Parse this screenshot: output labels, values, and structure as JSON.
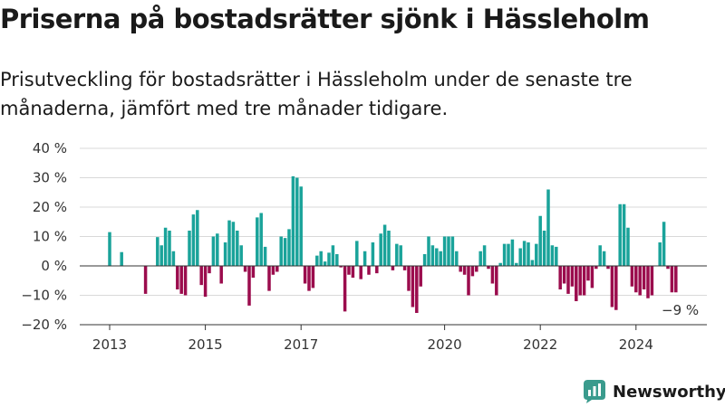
{
  "header": {
    "title": "Priserna på bostadsrätter sjönk i Hässleholm",
    "subtitle": "Prisutveckling för bostadsrätter i Hässleholm under de senaste tre månaderna, jämfört med tre månader tidigare."
  },
  "brand": {
    "name": "Newsworthy",
    "logo_icon": "bar-chart-speech-bubble-icon",
    "color": "#3a9b8d"
  },
  "colors": {
    "positive": "#1aa39a",
    "negative": "#9b0c4d"
  },
  "chart_data": {
    "type": "bar",
    "title": "Priserna på bostadsrätter sjönk i Hässleholm",
    "subtitle": "Prisutveckling för bostadsrätter i Hässleholm under de senaste tre månaderna, jämfört med tre månader tidigare.",
    "xlabel": "",
    "ylabel": "",
    "ylim": [
      -20,
      40
    ],
    "grid": true,
    "y_ticks": [
      40,
      30,
      20,
      10,
      0,
      -10,
      -20
    ],
    "y_tick_labels": [
      "40 %",
      "30 %",
      "20 %",
      "10 %",
      "0 %",
      "−10 %",
      "−20 %"
    ],
    "x_tick_labels": [
      {
        "label": "2013",
        "month_index": 0
      },
      {
        "label": "2015",
        "month_index": 24
      },
      {
        "label": "2017",
        "month_index": 48
      },
      {
        "label": "2020",
        "month_index": 84
      },
      {
        "label": "2022",
        "month_index": 108
      },
      {
        "label": "2024",
        "month_index": 132
      }
    ],
    "x_range_months": [
      -5,
      153
    ],
    "annotation": {
      "text": "−9 %",
      "month_index": 144
    },
    "series": [
      {
        "points": [
          {
            "m": 0,
            "v": 11.5
          },
          {
            "m": 3,
            "v": 4.7
          },
          {
            "m": 9,
            "v": -9.5
          },
          {
            "m": 12,
            "v": 9.8
          },
          {
            "m": 13,
            "v": 7
          },
          {
            "m": 14,
            "v": 13
          },
          {
            "m": 15,
            "v": 12
          },
          {
            "m": 16,
            "v": 5
          },
          {
            "m": 17,
            "v": -8
          },
          {
            "m": 18,
            "v": -9.5
          },
          {
            "m": 19,
            "v": -10
          },
          {
            "m": 20,
            "v": 12
          },
          {
            "m": 21,
            "v": 17.5
          },
          {
            "m": 22,
            "v": 19
          },
          {
            "m": 23,
            "v": -6.5
          },
          {
            "m": 24,
            "v": -10.5
          },
          {
            "m": 25,
            "v": -2.5
          },
          {
            "m": 26,
            "v": 10
          },
          {
            "m": 27,
            "v": 11
          },
          {
            "m": 28,
            "v": -6
          },
          {
            "m": 29,
            "v": 8
          },
          {
            "m": 30,
            "v": 15.5
          },
          {
            "m": 31,
            "v": 15
          },
          {
            "m": 32,
            "v": 12
          },
          {
            "m": 33,
            "v": 7
          },
          {
            "m": 34,
            "v": -2
          },
          {
            "m": 35,
            "v": -13.5
          },
          {
            "m": 36,
            "v": -4
          },
          {
            "m": 37,
            "v": 16.5
          },
          {
            "m": 38,
            "v": 18
          },
          {
            "m": 39,
            "v": 6.5
          },
          {
            "m": 40,
            "v": -8.5
          },
          {
            "m": 41,
            "v": -3
          },
          {
            "m": 42,
            "v": -2
          },
          {
            "m": 43,
            "v": 10
          },
          {
            "m": 44,
            "v": 9.5
          },
          {
            "m": 45,
            "v": 12.5
          },
          {
            "m": 46,
            "v": 30.5
          },
          {
            "m": 47,
            "v": 30
          },
          {
            "m": 48,
            "v": 27
          },
          {
            "m": 49,
            "v": -6
          },
          {
            "m": 50,
            "v": -8.5
          },
          {
            "m": 51,
            "v": -7.5
          },
          {
            "m": 52,
            "v": 3.5
          },
          {
            "m": 53,
            "v": 5
          },
          {
            "m": 54,
            "v": 1.5
          },
          {
            "m": 55,
            "v": 4.5
          },
          {
            "m": 56,
            "v": 7
          },
          {
            "m": 57,
            "v": 4
          },
          {
            "m": 58,
            "v": -0.5
          },
          {
            "m": 59,
            "v": -15.5
          },
          {
            "m": 60,
            "v": -3
          },
          {
            "m": 61,
            "v": -4
          },
          {
            "m": 62,
            "v": 8.5
          },
          {
            "m": 63,
            "v": -4.5
          },
          {
            "m": 64,
            "v": 5
          },
          {
            "m": 65,
            "v": -3
          },
          {
            "m": 66,
            "v": 8
          },
          {
            "m": 67,
            "v": -2.5
          },
          {
            "m": 68,
            "v": 11
          },
          {
            "m": 69,
            "v": 14
          },
          {
            "m": 70,
            "v": 12
          },
          {
            "m": 71,
            "v": -1.5
          },
          {
            "m": 72,
            "v": 7.5
          },
          {
            "m": 73,
            "v": 7
          },
          {
            "m": 74,
            "v": -1.5
          },
          {
            "m": 75,
            "v": -8.5
          },
          {
            "m": 76,
            "v": -14
          },
          {
            "m": 77,
            "v": -16
          },
          {
            "m": 78,
            "v": -7
          },
          {
            "m": 79,
            "v": 4
          },
          {
            "m": 80,
            "v": 10
          },
          {
            "m": 81,
            "v": 7
          },
          {
            "m": 82,
            "v": 6
          },
          {
            "m": 83,
            "v": 5
          },
          {
            "m": 84,
            "v": 10
          },
          {
            "m": 85,
            "v": 10
          },
          {
            "m": 86,
            "v": 10
          },
          {
            "m": 87,
            "v": 5
          },
          {
            "m": 88,
            "v": -2
          },
          {
            "m": 89,
            "v": -3
          },
          {
            "m": 90,
            "v": -10
          },
          {
            "m": 91,
            "v": -3.5
          },
          {
            "m": 92,
            "v": -2
          },
          {
            "m": 93,
            "v": 5
          },
          {
            "m": 94,
            "v": 7
          },
          {
            "m": 95,
            "v": -1
          },
          {
            "m": 96,
            "v": -6
          },
          {
            "m": 97,
            "v": -10
          },
          {
            "m": 98,
            "v": 1
          },
          {
            "m": 99,
            "v": 7.5
          },
          {
            "m": 100,
            "v": 7.5
          },
          {
            "m": 101,
            "v": 9
          },
          {
            "m": 102,
            "v": 1
          },
          {
            "m": 103,
            "v": 6
          },
          {
            "m": 104,
            "v": 8.5
          },
          {
            "m": 105,
            "v": 8
          },
          {
            "m": 106,
            "v": 2
          },
          {
            "m": 107,
            "v": 7.5
          },
          {
            "m": 108,
            "v": 17
          },
          {
            "m": 109,
            "v": 12
          },
          {
            "m": 110,
            "v": 26
          },
          {
            "m": 111,
            "v": 7
          },
          {
            "m": 112,
            "v": 6.5
          },
          {
            "m": 113,
            "v": -8
          },
          {
            "m": 114,
            "v": -6
          },
          {
            "m": 115,
            "v": -9.5
          },
          {
            "m": 116,
            "v": -7
          },
          {
            "m": 117,
            "v": -12
          },
          {
            "m": 118,
            "v": -10
          },
          {
            "m": 119,
            "v": -10
          },
          {
            "m": 120,
            "v": -5
          },
          {
            "m": 121,
            "v": -7.5
          },
          {
            "m": 122,
            "v": -1
          },
          {
            "m": 123,
            "v": 7
          },
          {
            "m": 124,
            "v": 5
          },
          {
            "m": 125,
            "v": -1
          },
          {
            "m": 126,
            "v": -14
          },
          {
            "m": 127,
            "v": -15
          },
          {
            "m": 128,
            "v": 21
          },
          {
            "m": 129,
            "v": 21
          },
          {
            "m": 130,
            "v": 13
          },
          {
            "m": 131,
            "v": -7
          },
          {
            "m": 132,
            "v": -9
          },
          {
            "m": 133,
            "v": -10
          },
          {
            "m": 134,
            "v": -8
          },
          {
            "m": 135,
            "v": -11
          },
          {
            "m": 136,
            "v": -10
          },
          {
            "m": 138,
            "v": 8
          },
          {
            "m": 139,
            "v": 15
          },
          {
            "m": 140,
            "v": -1
          },
          {
            "m": 141,
            "v": -9
          },
          {
            "m": 142,
            "v": -9
          }
        ]
      }
    ]
  }
}
